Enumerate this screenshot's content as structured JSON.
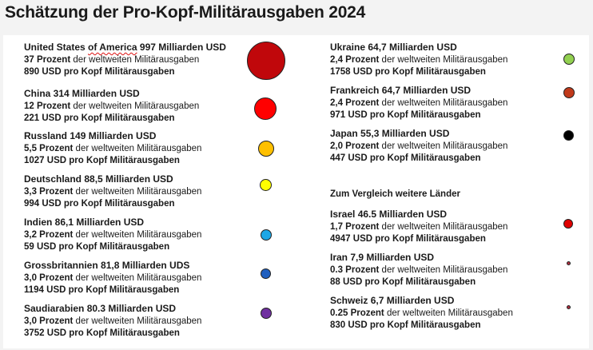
{
  "title": "Schätzung der Pro-Kopf-Militärausgaben 2024",
  "comparison_heading": "Zum Vergleich weitere Länder",
  "left_entries": [
    {
      "name_a": "United States ",
      "name_b": "of America",
      "amount": " 997 Milliarden USD",
      "percent": "37 Prozent",
      "percent_suffix": " der weltweiten Militärausgaben",
      "per_capita": "890 USD pro Kopf Militärausgaben",
      "color": "#c0070b"
    },
    {
      "name_a": "China",
      "name_b": "",
      "amount": " 314 Milliarden USD",
      "percent": "12 Prozent",
      "percent_suffix": " der weltweiten Militärausgaben",
      "per_capita": "221 USD pro Kopf Militärausgaben",
      "color": "#ff0000"
    },
    {
      "name_a": "Russland",
      "name_b": "",
      "amount": " 149 Milliarden USD",
      "percent": "5,5 Prozent",
      "percent_suffix": " der weltweiten Militärausgaben",
      "per_capita": "1027 USD pro Kopf Militärausgaben",
      "color": "#ffc000"
    },
    {
      "name_a": "Deutschland",
      "name_b": "",
      "amount": " 88,5 Milliarden USD",
      "percent": "3,3 Prozent",
      "percent_suffix": " der weltweiten Militärausgaben",
      "per_capita": "994 USD pro Kopf Militärausgaben",
      "color": "#ffff00"
    },
    {
      "name_a": "Indien",
      "name_b": "",
      "amount": " 86,1 Milliarden USD",
      "percent": "3,2 Prozent",
      "percent_suffix": " der weltweiten Militärausgaben",
      "per_capita": "59 USD pro Kopf Militärausgaben",
      "color": "#1ea7e6"
    },
    {
      "name_a": "Grossbritannien",
      "name_b": "",
      "amount": " 81,8 Milliarden UDS",
      "percent": "3,0 Prozent",
      "percent_suffix": " der weltweiten Militärausgaben",
      "per_capita": "1194 USD pro Kopf Militärausgaben",
      "color": "#1f5fbf"
    },
    {
      "name_a": "Saudiarabien",
      "name_b": "",
      "amount": " 80.3 Milliarden USD",
      "percent": "3,0 Prozent",
      "percent_suffix": " der weltweiten Militärausgaben",
      "per_capita": "3752 USD pro Kopf Militärausgaben",
      "color": "#7030a0"
    }
  ],
  "right_entries": [
    {
      "name_a": "Ukraine",
      "name_b": "",
      "amount": " 64,7 Milliarden USD",
      "percent": "2,4 Prozent",
      "percent_suffix": " der weltweiten Militärausgaben",
      "per_capita": "1758 USD pro Kopf Militärausgaben",
      "color": "#92d050"
    },
    {
      "name_a": "Frankreich",
      "name_b": "",
      "amount": " 64,7 Milliarden USD",
      "percent": "2,4 Prozent",
      "percent_suffix": " der weltweiten Militärausgaben",
      "per_capita": "971 USD pro Kopf Militärausgaben",
      "color": "#c0391a"
    },
    {
      "name_a": "Japan",
      "name_b": "",
      "amount": " 55,3 Milliarden USD",
      "percent": "2,0 Prozent",
      "percent_suffix": " der weltweiten Militärausgaben",
      "per_capita": "447 USD pro Kopf Militärausgaben",
      "color": "#000000"
    },
    {
      "name_a": "Israel",
      "name_b": "",
      "amount": " 46.5 Milliarden USD",
      "percent": "1,7 Prozent",
      "percent_suffix": " der weltweiten Militärausgaben",
      "per_capita": "4947 USD pro Kopf Militärausgaben",
      "color": "#e00000"
    },
    {
      "name_a": "Iran",
      "name_b": "",
      "amount": " 7,9 Milliarden USD",
      "percent": "0.3 Prozent",
      "percent_suffix": " der weltweiten Militärausgaben",
      "per_capita": "88 USD pro Kopf Militärausgaben",
      "color": "#b03040"
    },
    {
      "name_a": "Schweiz",
      "name_b": "",
      "amount": " 6,7 Milliarden USD",
      "percent": "0.25 Prozent",
      "percent_suffix": " der weltweiten Militärausgaben",
      "per_capita": "830 USD pro Kopf Militärausgaben",
      "color": "#b03040"
    }
  ]
}
